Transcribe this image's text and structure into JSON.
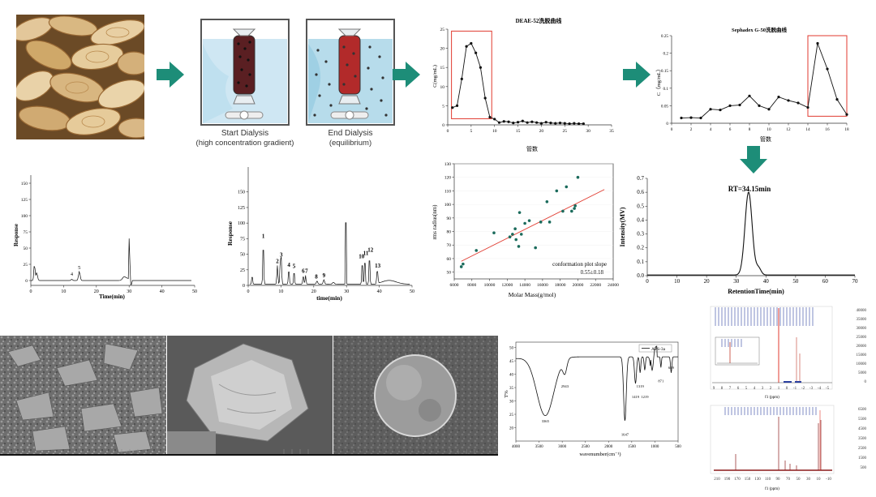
{
  "colors": {
    "arrow": "#1d8d78",
    "highlight": "#e03a2f",
    "fit": "#e03a2f",
    "dots": "#1b6b5c",
    "trace": "#111111"
  },
  "dialysis": {
    "start_label": "Start Dialysis",
    "start_sub": "(high concentration gradient)",
    "end_label": "End Dialysis",
    "end_sub": "(equilibrium)"
  },
  "chart_data": [
    {
      "type": "line",
      "title": "DEAE-52洗脱曲线",
      "xlabel": "管数",
      "ylabel": "C(mg/mL)",
      "xlim": [
        0,
        35
      ],
      "ylim": [
        0,
        25
      ],
      "xticks": [
        0,
        5,
        10,
        15,
        20,
        25,
        30,
        35
      ],
      "yticks": [
        0,
        5,
        10,
        15,
        20,
        25
      ],
      "x": [
        1,
        2,
        3,
        4,
        5,
        6,
        7,
        8,
        9,
        10,
        11,
        12,
        13,
        14,
        15,
        16,
        17,
        18,
        19,
        20,
        21,
        22,
        23,
        24,
        25,
        26,
        27,
        28,
        29
      ],
      "y": [
        4.5,
        5.0,
        12.0,
        20.5,
        21.3,
        18.8,
        15.0,
        7.0,
        2.0,
        1.5,
        0.6,
        0.9,
        0.8,
        0.5,
        0.7,
        1.0,
        0.6,
        0.8,
        0.6,
        0.4,
        0.7,
        0.5,
        0.4,
        0.5,
        0.4,
        0.3,
        0.4,
        0.3,
        0.3
      ]
    },
    {
      "type": "line",
      "title": "Sephadex G-50洗脱曲线",
      "xlabel": "管数",
      "ylabel": "C（mg/mL）",
      "xlim": [
        0,
        18
      ],
      "ylim": [
        0,
        0.25
      ],
      "xticks": [
        0,
        2,
        4,
        6,
        8,
        10,
        12,
        14,
        16,
        18
      ],
      "yticks": [
        0,
        0.05,
        0.1,
        0.15,
        0.2,
        0.25
      ],
      "x": [
        1,
        2,
        3,
        4,
        5,
        6,
        7,
        8,
        9,
        10,
        11,
        12,
        13,
        14,
        15,
        16,
        17,
        18
      ],
      "y": [
        0.015,
        0.016,
        0.015,
        0.04,
        0.038,
        0.05,
        0.052,
        0.078,
        0.05,
        0.04,
        0.075,
        0.065,
        0.058,
        0.045,
        0.228,
        0.155,
        0.068,
        0.025
      ]
    },
    {
      "type": "line",
      "xlabel": "Time(min)",
      "ylabel": "Response",
      "xlim": [
        0,
        50
      ],
      "xticks": [
        0,
        10,
        20,
        30,
        40,
        50
      ],
      "peak_labels": [
        "4",
        "5"
      ]
    },
    {
      "type": "line",
      "xlabel": "time(min)",
      "ylabel": "Response",
      "xlim": [
        0,
        50
      ],
      "ylim": [
        0,
        190
      ],
      "xticks": [
        0,
        10,
        20,
        30,
        40,
        50
      ],
      "yticks": [
        0,
        25,
        50,
        75,
        100,
        125,
        150
      ],
      "peak_labels": [
        "1",
        "2",
        "3",
        "4",
        "5",
        "6",
        "7",
        "8",
        "9",
        "10",
        "11",
        "12",
        "13"
      ]
    },
    {
      "type": "scatter",
      "xlabel": "Molar Mass(g/mol)",
      "ylabel": "rms radius(nm)",
      "xlim": [
        6000,
        24000
      ],
      "ylim": [
        45,
        130
      ],
      "xticks": [
        6000,
        8000,
        10000,
        12000,
        14000,
        16000,
        18000,
        20000,
        22000,
        24000
      ],
      "yticks": [
        50,
        60,
        70,
        80,
        90,
        100,
        110,
        120,
        130
      ],
      "annotation": "conformation plot slope",
      "annotation_value": "0.55±0.18",
      "points": [
        [
          6800,
          54
        ],
        [
          7000,
          56
        ],
        [
          8500,
          66
        ],
        [
          10500,
          79
        ],
        [
          12300,
          76
        ],
        [
          12600,
          78
        ],
        [
          12900,
          82
        ],
        [
          13000,
          74
        ],
        [
          13300,
          69
        ],
        [
          13400,
          94
        ],
        [
          13600,
          78
        ],
        [
          14000,
          86
        ],
        [
          14500,
          88
        ],
        [
          15200,
          68
        ],
        [
          15800,
          87
        ],
        [
          16500,
          102
        ],
        [
          16800,
          87
        ],
        [
          17600,
          110
        ],
        [
          18300,
          95
        ],
        [
          18700,
          113
        ],
        [
          19300,
          95
        ],
        [
          19600,
          97
        ],
        [
          19700,
          99
        ],
        [
          20000,
          120
        ]
      ],
      "fit": [
        [
          6800,
          58
        ],
        [
          23000,
          111
        ]
      ]
    },
    {
      "type": "line",
      "xlabel": "RetentionTime(min)",
      "ylabel": "Intensity(MV)",
      "annotation": "RT=34.15min",
      "xlim": [
        0,
        70
      ],
      "ylim": [
        0,
        0.7
      ],
      "xticks": [
        0,
        10,
        20,
        30,
        40,
        50,
        60,
        70
      ],
      "yticks": [
        0.0,
        0.1,
        0.2,
        0.3,
        0.4,
        0.5,
        0.6,
        0.7
      ]
    },
    {
      "type": "line",
      "legend": "APS-3a",
      "xlabel": "wavenumber(cm⁻¹)",
      "ylabel": "T%",
      "xlim": [
        4000,
        500
      ],
      "xticks": [
        4000,
        3500,
        3000,
        2500,
        2000,
        1500,
        1000,
        500
      ],
      "yticks": [
        20,
        25,
        30,
        35,
        40,
        45,
        50
      ],
      "peak_labels": [
        "3365",
        "2943",
        "1647",
        "1419",
        "1319",
        "1219",
        "871",
        "649"
      ]
    }
  ],
  "nmr": {
    "h_xaxis": "f1 (ppm)",
    "c_xaxis": "f1 (ppm)",
    "h_ticks": [
      "9",
      "8",
      "7",
      "6",
      "5",
      "4",
      "3",
      "2",
      "1",
      "0",
      "-1",
      "-2",
      "-3",
      "-4",
      "-5"
    ],
    "c_ticks": [
      "210",
      "190",
      "170",
      "150",
      "130",
      "110",
      "90",
      "70",
      "50",
      "30",
      "10",
      "-10"
    ],
    "h_yticks": [
      "40000",
      "35000",
      "30000",
      "25000",
      "20000",
      "15000",
      "10000",
      "5000",
      "0"
    ],
    "c_yticks": [
      "6500",
      "5500",
      "4500",
      "3500",
      "2500",
      "1500",
      "500"
    ]
  }
}
